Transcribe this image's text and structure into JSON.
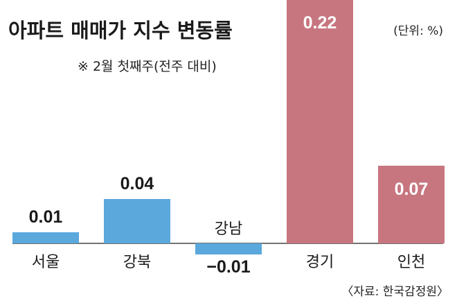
{
  "chart_data": {
    "type": "bar",
    "title": "아파트 매매가 지수 변동률",
    "subtitle": "※ 2월 첫째주(전주 대비)",
    "unit": "(단위: %)",
    "source": "〈자료: 한국감정원〉",
    "categories": [
      "서울",
      "강북",
      "강남",
      "경기",
      "인천"
    ],
    "values": [
      0.01,
      0.04,
      -0.01,
      0.22,
      0.07
    ],
    "value_labels": [
      "0.01",
      "0.04",
      "−0.01",
      "0.22",
      "0.07"
    ],
    "bar_colors": [
      "#5aa8dc",
      "#5aa8dc",
      "#5aa8dc",
      "#c7767f",
      "#c7767f"
    ],
    "ylim": [
      -0.014,
      0.23
    ],
    "grid": false,
    "legend": "none"
  }
}
